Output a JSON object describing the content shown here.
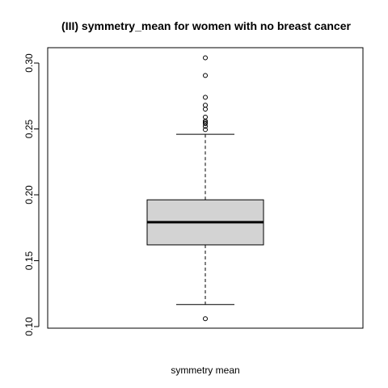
{
  "chart_data": {
    "type": "boxplot",
    "title": "(III) symmetry_mean for women with no breast cancer",
    "xlabel": "symmetry mean",
    "ylabel": "",
    "ylim": [
      0.1,
      0.305
    ],
    "y_ticks": [
      "0.10",
      "0.15",
      "0.20",
      "0.25",
      "0.30"
    ],
    "grid": false,
    "box": {
      "whisker_low": 0.1167,
      "q1": 0.162,
      "median": 0.1792,
      "q3": 0.1962,
      "whisker_high": 0.2459,
      "fill": "#d3d3d3"
    },
    "outliers": [
      0.106,
      0.2495,
      0.252,
      0.254,
      0.255,
      0.256,
      0.259,
      0.265,
      0.268,
      0.274,
      0.2906,
      0.304
    ]
  }
}
